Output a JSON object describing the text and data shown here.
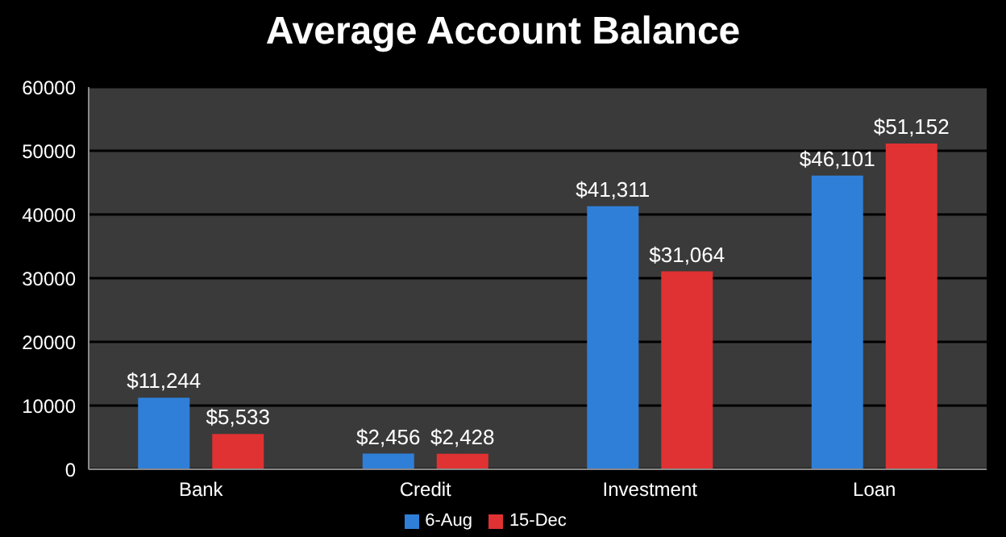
{
  "chart_data": {
    "type": "bar",
    "title": "Average Account Balance",
    "categories": [
      "Bank",
      "Credit",
      "Investment",
      "Loan"
    ],
    "series": [
      {
        "name": "6-Aug",
        "color": "#2f7fd8",
        "values": [
          11244,
          2456,
          41311,
          46101
        ],
        "value_labels": [
          "$11,244",
          "$2,456",
          "$41,311",
          "$46,101"
        ]
      },
      {
        "name": "15-Dec",
        "color": "#e03232",
        "values": [
          5533,
          2428,
          31064,
          51152
        ],
        "value_labels": [
          "$5,533",
          "$2,428",
          "$31,064",
          "$51,152"
        ]
      }
    ],
    "ylim": [
      0,
      60000
    ],
    "yticks": [
      0,
      10000,
      20000,
      30000,
      40000,
      50000,
      60000
    ],
    "grid": "y",
    "legend": "bottom"
  }
}
